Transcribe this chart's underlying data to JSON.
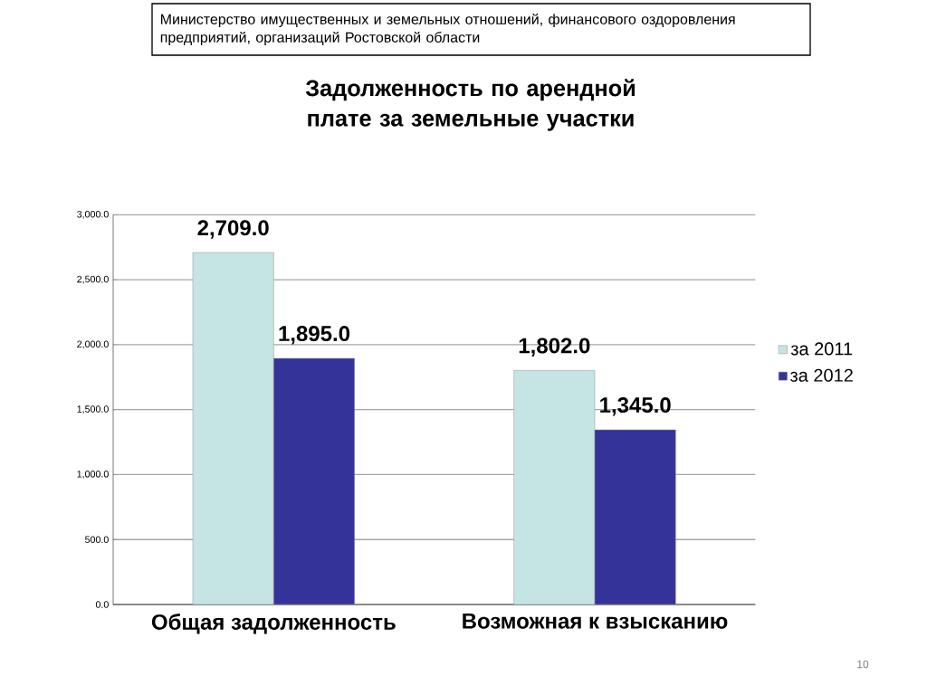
{
  "chart_data": {
    "type": "bar",
    "title": "Задолженность по арендной плате за земельные участки",
    "categories": [
      "Общая задолженность",
      "Возможная к взысканию"
    ],
    "series": [
      {
        "name": "за 2011",
        "color": "#c5e4e4",
        "values": [
          2709.0,
          1802.0
        ],
        "value_labels": [
          "2,709.0",
          "1,802.0"
        ]
      },
      {
        "name": "за 2012",
        "color": "#333399",
        "values": [
          1895.0,
          1345.0
        ],
        "value_labels": [
          "1,895.0",
          "1,345.0"
        ]
      }
    ],
    "ylim": [
      0,
      3000
    ],
    "yticks": [
      {
        "value": 0,
        "label": "0.0"
      },
      {
        "value": 500,
        "label": "500.0"
      },
      {
        "value": 1000,
        "label": "1,000.0"
      },
      {
        "value": 1500,
        "label": "1,500.0"
      },
      {
        "value": 2000,
        "label": "2,000.0"
      },
      {
        "value": 2500,
        "label": "2,500.0"
      },
      {
        "value": 3000,
        "label": "3,000.0"
      }
    ],
    "grid": "y",
    "legend": "right",
    "annotations": [
      "Министерство имущественных и земельных отношений, финансового оздоровления предприятий, организаций Ростовской области",
      "10"
    ]
  }
}
